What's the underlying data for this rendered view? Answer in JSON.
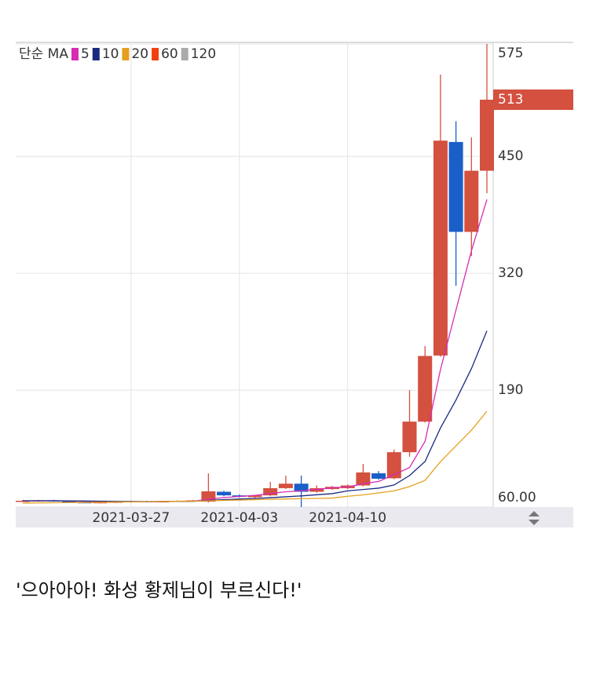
{
  "chart_data": {
    "type": "candlestick",
    "categories": [
      null,
      null,
      null,
      null,
      null,
      null,
      null,
      "2021-03-27",
      null,
      null,
      null,
      null,
      null,
      null,
      "2021-04-03",
      null,
      null,
      null,
      null,
      null,
      null,
      "2021-04-10",
      null,
      null,
      null,
      null,
      null,
      null,
      null,
      null,
      null
    ],
    "open": [
      67,
      67,
      67.5,
      66.5,
      65.5,
      65,
      65.5,
      66,
      66.5,
      66,
      66.5,
      67,
      66,
      77,
      73,
      71,
      73,
      81,
      86,
      77,
      80,
      81,
      84,
      97.5,
      92,
      121,
      155,
      228.5,
      466,
      366,
      434
    ],
    "high": [
      68,
      68,
      68,
      67,
      66.5,
      66,
      66.5,
      67,
      67,
      67,
      67.5,
      68,
      97.5,
      78,
      74,
      73.5,
      88,
      95,
      95,
      84,
      83.5,
      85,
      108,
      100,
      124,
      190,
      239,
      541,
      489,
      471,
      575
    ],
    "low": [
      66,
      66,
      66,
      65,
      64.5,
      64,
      64.5,
      65,
      65.5,
      65.5,
      66,
      66,
      65,
      72,
      70.5,
      70,
      72,
      80,
      60,
      76,
      79,
      80,
      83,
      90.5,
      91,
      116,
      154,
      227,
      306,
      339,
      409
    ],
    "close": [
      67,
      67.5,
      66.5,
      65.5,
      65,
      65.5,
      66,
      66.5,
      66,
      66.5,
      67,
      67.5,
      77.5,
      73,
      71.5,
      73,
      81,
      86,
      77,
      81,
      82.5,
      84,
      98.5,
      91.5,
      121,
      155,
      228,
      467.5,
      366,
      434,
      513
    ],
    "up_color": "#d4503f",
    "down_color": "#1a5fc8",
    "ma_label": "단순 MA",
    "ma_series": [
      {
        "name": "5",
        "color": "#d62cb4",
        "values": [
          67,
          67,
          67,
          66.8,
          66.4,
          66,
          65.8,
          65.8,
          66,
          66.1,
          66.4,
          66.6,
          68.6,
          70.6,
          71.8,
          73,
          75,
          77,
          78,
          79.6,
          81.4,
          82.2,
          86,
          88.5,
          96,
          104,
          133,
          213,
          279,
          345,
          402
        ]
      },
      {
        "name": "10",
        "color": "#1a2a80",
        "values": [
          67,
          67,
          67,
          66.9,
          66.7,
          66.5,
          66.3,
          66.2,
          66.1,
          66.1,
          66.2,
          66.3,
          67.3,
          68.3,
          68.9,
          69.5,
          70.4,
          71.4,
          72.4,
          73.7,
          74.9,
          78,
          79.5,
          81,
          84.5,
          95,
          110.6,
          148,
          179,
          214,
          256
        ]
      },
      {
        "name": "20",
        "color": "#e6a020",
        "values": [
          64.4,
          64.6,
          64.8,
          65,
          65.2,
          65.4,
          65.6,
          65.8,
          66,
          66.2,
          66.4,
          66.6,
          67,
          67.4,
          67.8,
          68.2,
          68.6,
          69,
          69.3,
          69.6,
          70,
          72,
          73.5,
          75.7,
          78,
          82.7,
          89.7,
          110.6,
          128,
          145.5,
          166.5
        ]
      },
      {
        "name": "60",
        "color": "#f04010",
        "values": [
          null,
          null,
          null,
          null,
          null,
          null,
          null,
          null,
          null,
          null,
          null,
          null,
          null,
          null,
          null,
          null,
          null,
          null,
          null,
          null,
          null,
          null,
          null,
          null,
          null,
          null,
          null,
          null,
          null,
          null,
          null
        ]
      },
      {
        "name": "120",
        "color": "#aaaaaa",
        "values": [
          null,
          null,
          null,
          null,
          null,
          null,
          null,
          null,
          null,
          null,
          null,
          null,
          null,
          null,
          null,
          null,
          null,
          null,
          null,
          null,
          null,
          null,
          null,
          null,
          null,
          null,
          null,
          null,
          null,
          null,
          null
        ]
      }
    ],
    "ylim": [
      60,
      575
    ],
    "yticks": [
      {
        "value": 60,
        "label": "60.00"
      },
      190,
      320,
      450,
      575
    ],
    "grid": true
  },
  "caption": "'으아아아! 화성 황제님이 부르신다!'"
}
